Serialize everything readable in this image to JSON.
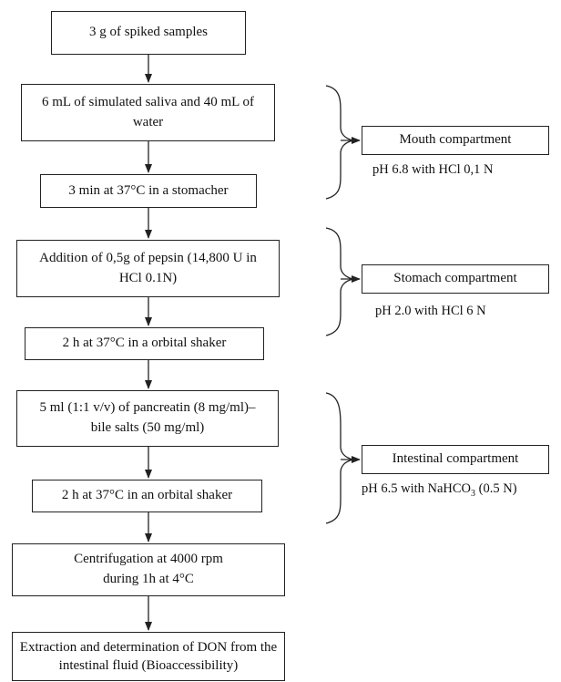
{
  "steps": [
    {
      "text": "3 g of spiked samples"
    },
    {
      "text": "6 mL of simulated saliva and 40 mL of water"
    },
    {
      "text": "3 min at 37°C in a stomacher"
    },
    {
      "text": "Addition of 0,5g of pepsin (14,800 U in HCl 0.1N)"
    },
    {
      "text": "2 h at 37°C in a orbital shaker"
    },
    {
      "text": "5 ml (1:1 v/v) of pancreatin (8 mg/ml)–bile salts (50 mg/ml)"
    },
    {
      "text": "2 h at 37°C in an orbital shaker"
    },
    {
      "text": "Centrifugation at 4000 rpm during 1h at 4°C"
    },
    {
      "text": "Extraction and determination of DON from the intestinal fluid (Bioaccessibility)"
    }
  ],
  "compartments": [
    {
      "label": "Mouth compartment",
      "ph": "pH 6.8 with HCl 0,1 N"
    },
    {
      "label": "Stomach compartment",
      "ph": "pH 2.0 with HCl 6 N"
    },
    {
      "label": "Intestinal compartment",
      "ph_prefix": "pH 6.5 with NaHCO",
      "ph_sub": "3",
      "ph_suffix": " (0.5 N)"
    }
  ]
}
